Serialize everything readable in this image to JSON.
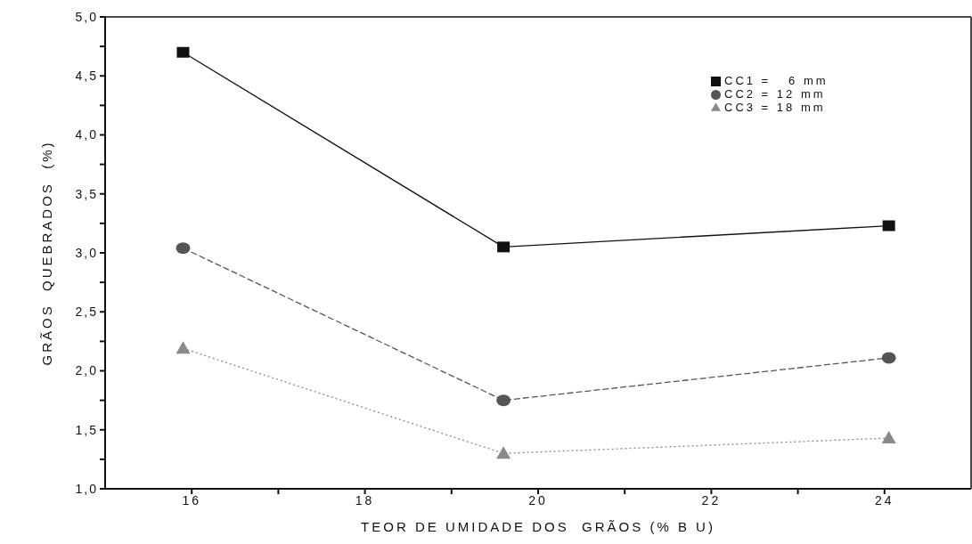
{
  "chart_data": {
    "type": "line",
    "xlabel": "TEOR DE UMIDADE DOS  GRÃOS (% B U)",
    "ylabel": "GRÃOS  QUEBRADOS  (%)",
    "x": [
      15.9,
      19.6,
      24.05
    ],
    "series": [
      {
        "name": "CC1 =   6 mm",
        "color": "#111111",
        "values": [
          4.7,
          3.05,
          3.23
        ],
        "marker": "square",
        "line_style": "solid"
      },
      {
        "name": "CC2 = 12 mm",
        "color": "#555555",
        "values": [
          3.04,
          1.75,
          2.11
        ],
        "marker": "circle",
        "line_style": "dashed"
      },
      {
        "name": "CC3 = 18 mm",
        "color": "#8a8a8a",
        "values": [
          2.19,
          1.3,
          1.43
        ],
        "marker": "triangle",
        "line_style": "dotted"
      }
    ],
    "xlim": [
      15,
      25
    ],
    "xticks": [
      16,
      {
        "value": 17,
        "label": null
      },
      18,
      {
        "value": 19,
        "label": null
      },
      20,
      {
        "value": 21,
        "label": null
      },
      22,
      {
        "value": 23,
        "label": null
      },
      24
    ],
    "ylim": [
      1,
      5
    ],
    "yticks": [
      {
        "value": 1,
        "label": "1,0"
      },
      {
        "value": 1.25,
        "label": null
      },
      {
        "value": 1.5,
        "label": "1,5"
      },
      {
        "value": 1.75,
        "label": null
      },
      {
        "value": 2,
        "label": "2,0"
      },
      {
        "value": 2.25,
        "label": null
      },
      {
        "value": 2.5,
        "label": "2,5"
      },
      {
        "value": 2.75,
        "label": null
      },
      {
        "value": 3,
        "label": "3,0"
      },
      {
        "value": 3.25,
        "label": null
      },
      {
        "value": 3.5,
        "label": "3,5"
      },
      {
        "value": 3.75,
        "label": null
      },
      {
        "value": 4,
        "label": "4,0"
      },
      {
        "value": 4.25,
        "label": null
      },
      {
        "value": 4.5,
        "label": "4,5"
      },
      {
        "value": 4.75,
        "label": null
      },
      {
        "value": 5,
        "label": "5,0"
      }
    ],
    "grid": false,
    "legend": "top right"
  }
}
